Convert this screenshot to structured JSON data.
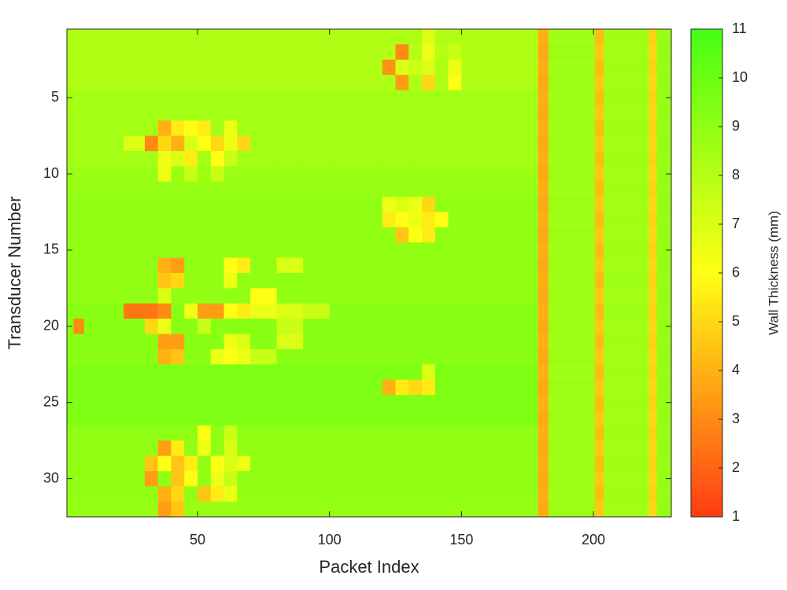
{
  "chart_data": {
    "type": "heatmap",
    "xlabel": "Packet Index",
    "ylabel": "Transducer Number",
    "colorbar_label": "Wall Thickness (mm)",
    "xbins": [
      0.5,
      3,
      7,
      22,
      30,
      35,
      40,
      45,
      50,
      55,
      60,
      65,
      70,
      80,
      90,
      100,
      120,
      125,
      130,
      135,
      140,
      145,
      150,
      179,
      183,
      200.5,
      204,
      221,
      224,
      229.5
    ],
    "y": [
      1,
      2,
      3,
      4,
      5,
      6,
      7,
      8,
      9,
      10,
      11,
      12,
      13,
      14,
      15,
      16,
      17,
      18,
      19,
      20,
      21,
      22,
      23,
      24,
      25,
      26,
      27,
      28,
      29,
      30,
      31,
      32
    ],
    "z": [
      [
        8.2,
        8.2,
        8.2,
        8.2,
        8.2,
        8.2,
        8.2,
        8.2,
        8.2,
        8.2,
        8.2,
        8.2,
        8.2,
        8.2,
        8.2,
        8.2,
        8.2,
        8.2,
        8.2,
        7,
        8.2,
        8.2,
        8.2,
        4,
        8.6,
        4.3,
        8.6,
        4.8,
        8.8
      ],
      [
        8.2,
        8.2,
        8.2,
        8.2,
        8.2,
        8.2,
        8.2,
        8.2,
        8.2,
        8.2,
        8.2,
        8.2,
        8.2,
        8.2,
        8.2,
        8.2,
        8,
        3,
        8,
        6.5,
        8,
        7.5,
        8.2,
        3.8,
        8.7,
        4.6,
        8.5,
        5,
        8.9
      ],
      [
        8.2,
        8.2,
        8.2,
        8.2,
        8.2,
        8.2,
        8.2,
        8.2,
        8.2,
        8.2,
        8.2,
        8.2,
        8.2,
        8.2,
        8.2,
        8.2,
        3.2,
        7,
        7.5,
        7,
        8.2,
        6.5,
        8.2,
        4,
        8.6,
        4.3,
        8.6,
        4.8,
        8.8
      ],
      [
        8.2,
        8.2,
        8.2,
        8.2,
        8.2,
        8.2,
        8.2,
        8.2,
        8.2,
        8.2,
        8.2,
        8.2,
        8.2,
        8.2,
        8.2,
        8.2,
        8.2,
        3.5,
        8.2,
        5,
        8.2,
        6,
        8.2,
        3.8,
        8.7,
        4.6,
        8.5,
        5,
        8.9
      ],
      [
        8.5,
        8.5,
        8.5,
        8.5,
        8.5,
        8.5,
        8.5,
        8.5,
        8.5,
        8.5,
        8.5,
        8.5,
        8.5,
        8.5,
        8.5,
        8.5,
        8.5,
        8.5,
        8.5,
        8.5,
        8.5,
        8.5,
        8.5,
        4,
        8.6,
        4.3,
        8.6,
        4.8,
        8.8
      ],
      [
        8.5,
        8.5,
        8.5,
        8.5,
        8.5,
        8.5,
        8.5,
        8.5,
        8.5,
        8.5,
        8.5,
        8.5,
        8.5,
        8.5,
        8.5,
        8.5,
        8.5,
        8.5,
        8.5,
        8.5,
        8.5,
        8.5,
        8.5,
        3.8,
        8.7,
        4.6,
        8.5,
        5,
        8.9
      ],
      [
        8.5,
        8.5,
        8.5,
        8.5,
        8.5,
        4,
        5.5,
        6,
        5.5,
        8.5,
        6.5,
        8.5,
        8.5,
        8.5,
        8.5,
        8.5,
        8.5,
        8.5,
        8.5,
        8.5,
        8.5,
        8.5,
        8.5,
        4,
        8.6,
        4.3,
        8.6,
        4.8,
        8.8
      ],
      [
        8.5,
        8.5,
        8.5,
        7,
        3,
        5,
        4,
        7,
        6,
        5,
        6.5,
        5,
        8.5,
        8.5,
        8.5,
        8.5,
        8.5,
        8.5,
        8.5,
        8.5,
        8.5,
        8.5,
        8.5,
        3.8,
        8.7,
        4.6,
        8.5,
        5,
        8.9
      ],
      [
        8.5,
        8.5,
        8.5,
        8.5,
        8.5,
        6.5,
        7,
        5.5,
        8.5,
        6,
        7.5,
        8.5,
        8.5,
        8.5,
        8.5,
        8.5,
        8.5,
        8.5,
        8.5,
        8.5,
        8.5,
        8.5,
        8.5,
        4,
        8.6,
        4.3,
        8.6,
        4.8,
        8.8
      ],
      [
        8.7,
        8.7,
        8.7,
        8.7,
        8.7,
        6.5,
        8.7,
        7.5,
        8.7,
        7.5,
        8.7,
        8.7,
        8.7,
        8.7,
        8.7,
        8.7,
        8.7,
        8.7,
        8.7,
        8.7,
        8.7,
        8.7,
        8.7,
        3.8,
        8.7,
        4.6,
        8.5,
        5,
        8.9
      ],
      [
        8.8,
        8.8,
        8.8,
        8.8,
        8.8,
        8.8,
        8.8,
        8.8,
        8.8,
        8.8,
        8.8,
        8.8,
        8.8,
        8.8,
        8.8,
        8.8,
        8.8,
        8.8,
        8.8,
        8.8,
        8.8,
        8.8,
        8.8,
        4,
        8.6,
        4.3,
        8.6,
        4.8,
        8.8
      ],
      [
        9,
        9,
        9,
        9,
        9,
        9,
        9,
        9,
        9,
        9,
        9,
        9,
        9,
        9,
        9,
        9,
        6.5,
        7,
        6.5,
        5,
        9,
        9,
        9,
        3.8,
        8.7,
        4.6,
        8.5,
        5,
        8.9
      ],
      [
        9,
        9,
        9,
        9,
        9,
        9,
        9,
        9,
        9,
        9,
        9,
        9,
        9,
        9,
        9,
        9,
        5.5,
        6,
        6.5,
        5.5,
        6,
        9,
        9,
        4,
        8.6,
        4.3,
        8.6,
        4.8,
        8.8
      ],
      [
        9,
        9,
        9,
        9,
        9,
        9,
        9,
        9,
        9,
        9,
        9,
        9,
        9,
        9,
        9,
        9,
        9,
        4.5,
        6,
        5.5,
        9,
        9,
        9,
        3.8,
        8.7,
        4.6,
        8.5,
        5,
        8.9
      ],
      [
        9,
        9,
        9,
        9,
        9,
        9,
        9,
        9,
        9,
        9,
        9,
        9,
        9,
        9,
        9,
        9,
        9,
        9,
        9,
        9,
        9,
        9,
        9,
        4,
        8.6,
        4.3,
        8.6,
        4.8,
        8.8
      ],
      [
        9,
        9,
        9,
        9,
        9,
        4,
        3.5,
        9,
        9,
        9,
        6,
        5.5,
        9,
        7,
        9,
        9,
        9,
        9,
        9,
        9,
        9,
        9,
        9,
        3.8,
        8.7,
        4.6,
        8.5,
        5,
        8.9
      ],
      [
        9,
        9,
        9,
        9,
        9,
        4.5,
        5,
        9,
        9,
        9,
        6.5,
        9,
        9,
        9,
        9,
        9,
        9,
        9,
        9,
        9,
        9,
        9,
        9,
        4,
        8.6,
        4.3,
        8.6,
        4.8,
        8.8
      ],
      [
        9,
        9,
        9,
        9,
        9,
        7,
        9,
        9,
        9,
        9,
        9,
        9,
        6,
        9,
        9,
        9,
        9,
        9,
        9,
        9,
        9,
        9,
        9,
        3.8,
        8.7,
        4.6,
        8.5,
        5,
        8.9
      ],
      [
        9.2,
        9.2,
        9.2,
        2.5,
        2.5,
        3,
        9.2,
        6.5,
        3.5,
        3.5,
        6,
        5.5,
        6.5,
        7,
        7.5,
        9.2,
        9.2,
        9.2,
        9.2,
        9.2,
        9.2,
        9.2,
        9.2,
        4,
        8.6,
        4.3,
        8.6,
        4.8,
        8.8
      ],
      [
        9.2,
        3,
        9.2,
        9.2,
        5,
        6.5,
        9.2,
        9.2,
        7.5,
        9.2,
        9.2,
        9.2,
        9.2,
        7.5,
        9.2,
        9.2,
        9.2,
        9.2,
        9.2,
        9.2,
        9.2,
        9.2,
        9.2,
        3.8,
        8.7,
        4.6,
        8.5,
        5,
        8.9
      ],
      [
        9.2,
        9.2,
        9.2,
        9.2,
        9.2,
        3.5,
        3.5,
        9.2,
        9.2,
        9.2,
        6.5,
        7,
        9.2,
        7,
        9.2,
        9.2,
        9.2,
        9.2,
        9.2,
        9.2,
        9.2,
        9.2,
        9.2,
        4,
        8.6,
        4.3,
        8.6,
        4.8,
        8.8
      ],
      [
        9.2,
        9.2,
        9.2,
        9.2,
        9.2,
        4,
        4.5,
        9.2,
        9.2,
        6.5,
        6,
        6.5,
        7.5,
        9.2,
        9.2,
        9.2,
        9.2,
        9.2,
        9.2,
        9.2,
        9.2,
        9.2,
        9.2,
        3.8,
        8.7,
        4.6,
        8.5,
        5,
        8.9
      ],
      [
        9.5,
        9.5,
        9.5,
        9.5,
        9.5,
        9.5,
        9.5,
        9.5,
        9.5,
        9.5,
        9.5,
        9.5,
        9.5,
        9.5,
        9.5,
        9.5,
        9.5,
        9.5,
        9.5,
        7,
        9.5,
        9.5,
        9.5,
        4,
        8.6,
        4.3,
        8.6,
        4.8,
        8.8
      ],
      [
        9.5,
        9.5,
        9.5,
        9.5,
        9.5,
        9.5,
        9.5,
        9.5,
        9.5,
        9.5,
        9.5,
        9.5,
        9.5,
        9.5,
        9.5,
        9.5,
        4,
        5.5,
        5,
        5.5,
        9.5,
        9.5,
        9.5,
        3.8,
        8.7,
        4.6,
        8.5,
        5,
        8.9
      ],
      [
        9.5,
        9.5,
        9.5,
        9.5,
        9.5,
        9.5,
        9.5,
        9.5,
        9.5,
        9.5,
        9.5,
        9.5,
        9.5,
        9.5,
        9.5,
        9.5,
        9.5,
        9.5,
        9.5,
        9.5,
        9.5,
        9.5,
        9.5,
        4,
        8.6,
        4.3,
        8.6,
        4.8,
        8.8
      ],
      [
        9.5,
        9.5,
        9.5,
        9.5,
        9.5,
        9.5,
        9.5,
        9.5,
        9.5,
        9.5,
        9.5,
        9.5,
        9.5,
        9.5,
        9.5,
        9.5,
        9.5,
        9.5,
        9.5,
        9.5,
        9.5,
        9.5,
        9.5,
        3.8,
        8.7,
        4.6,
        8.5,
        5,
        8.9
      ],
      [
        9,
        9,
        9,
        9,
        9,
        9,
        9,
        9,
        6,
        9,
        7.5,
        9,
        9,
        9,
        9,
        9,
        9,
        9,
        9,
        9,
        9,
        9,
        9,
        4,
        8.6,
        4.3,
        8.6,
        4.8,
        8.8
      ],
      [
        9,
        9,
        9,
        9,
        9,
        3.5,
        5.5,
        9,
        6.5,
        9,
        7,
        9,
        9,
        9,
        9,
        9,
        9,
        9,
        9,
        9,
        9,
        9,
        9,
        3.8,
        8.7,
        4.6,
        8.5,
        5,
        8.9
      ],
      [
        9,
        9,
        9,
        9,
        4.5,
        6,
        4.5,
        5.5,
        9,
        6,
        7,
        6.5,
        9,
        9,
        9,
        9,
        9,
        9,
        9,
        9,
        9,
        9,
        9,
        4,
        8.6,
        4.3,
        8.6,
        4.8,
        8.8
      ],
      [
        9,
        9,
        9,
        9,
        3.5,
        9,
        4.5,
        6,
        9,
        6.5,
        7.5,
        9,
        9,
        9,
        9,
        9,
        9,
        9,
        9,
        9,
        9,
        9,
        9,
        3.8,
        8.7,
        4.6,
        8.5,
        5,
        8.9
      ],
      [
        9,
        9,
        9,
        9,
        9,
        4,
        5,
        9,
        4.5,
        5.5,
        6.5,
        9,
        9,
        9,
        9,
        9,
        9,
        9,
        9,
        9,
        9,
        9,
        9,
        4,
        8.6,
        4.3,
        8.6,
        4.8,
        8.8
      ],
      [
        8.8,
        8.8,
        8.8,
        8.8,
        8.8,
        3.5,
        4.5,
        8.8,
        8.8,
        8.8,
        8.8,
        8.8,
        8.8,
        8.8,
        8.8,
        8.8,
        8.8,
        8.8,
        8.8,
        8.8,
        8.8,
        8.8,
        8.8,
        3.8,
        8.7,
        4.6,
        8.5,
        5,
        8.9
      ]
    ],
    "xlim": [
      0.5,
      229.5
    ],
    "ylim": [
      0.5,
      32.5
    ],
    "y_reversed": true,
    "xticks": [
      50,
      100,
      150,
      200
    ],
    "yticks": [
      5,
      10,
      15,
      20,
      25,
      30
    ],
    "clim": [
      1,
      11
    ],
    "cticks": [
      1,
      2,
      3,
      4,
      5,
      6,
      7,
      8,
      9,
      10,
      11
    ],
    "colormap": [
      "#ff3c14",
      "#ffff14",
      "#46ff14"
    ]
  }
}
